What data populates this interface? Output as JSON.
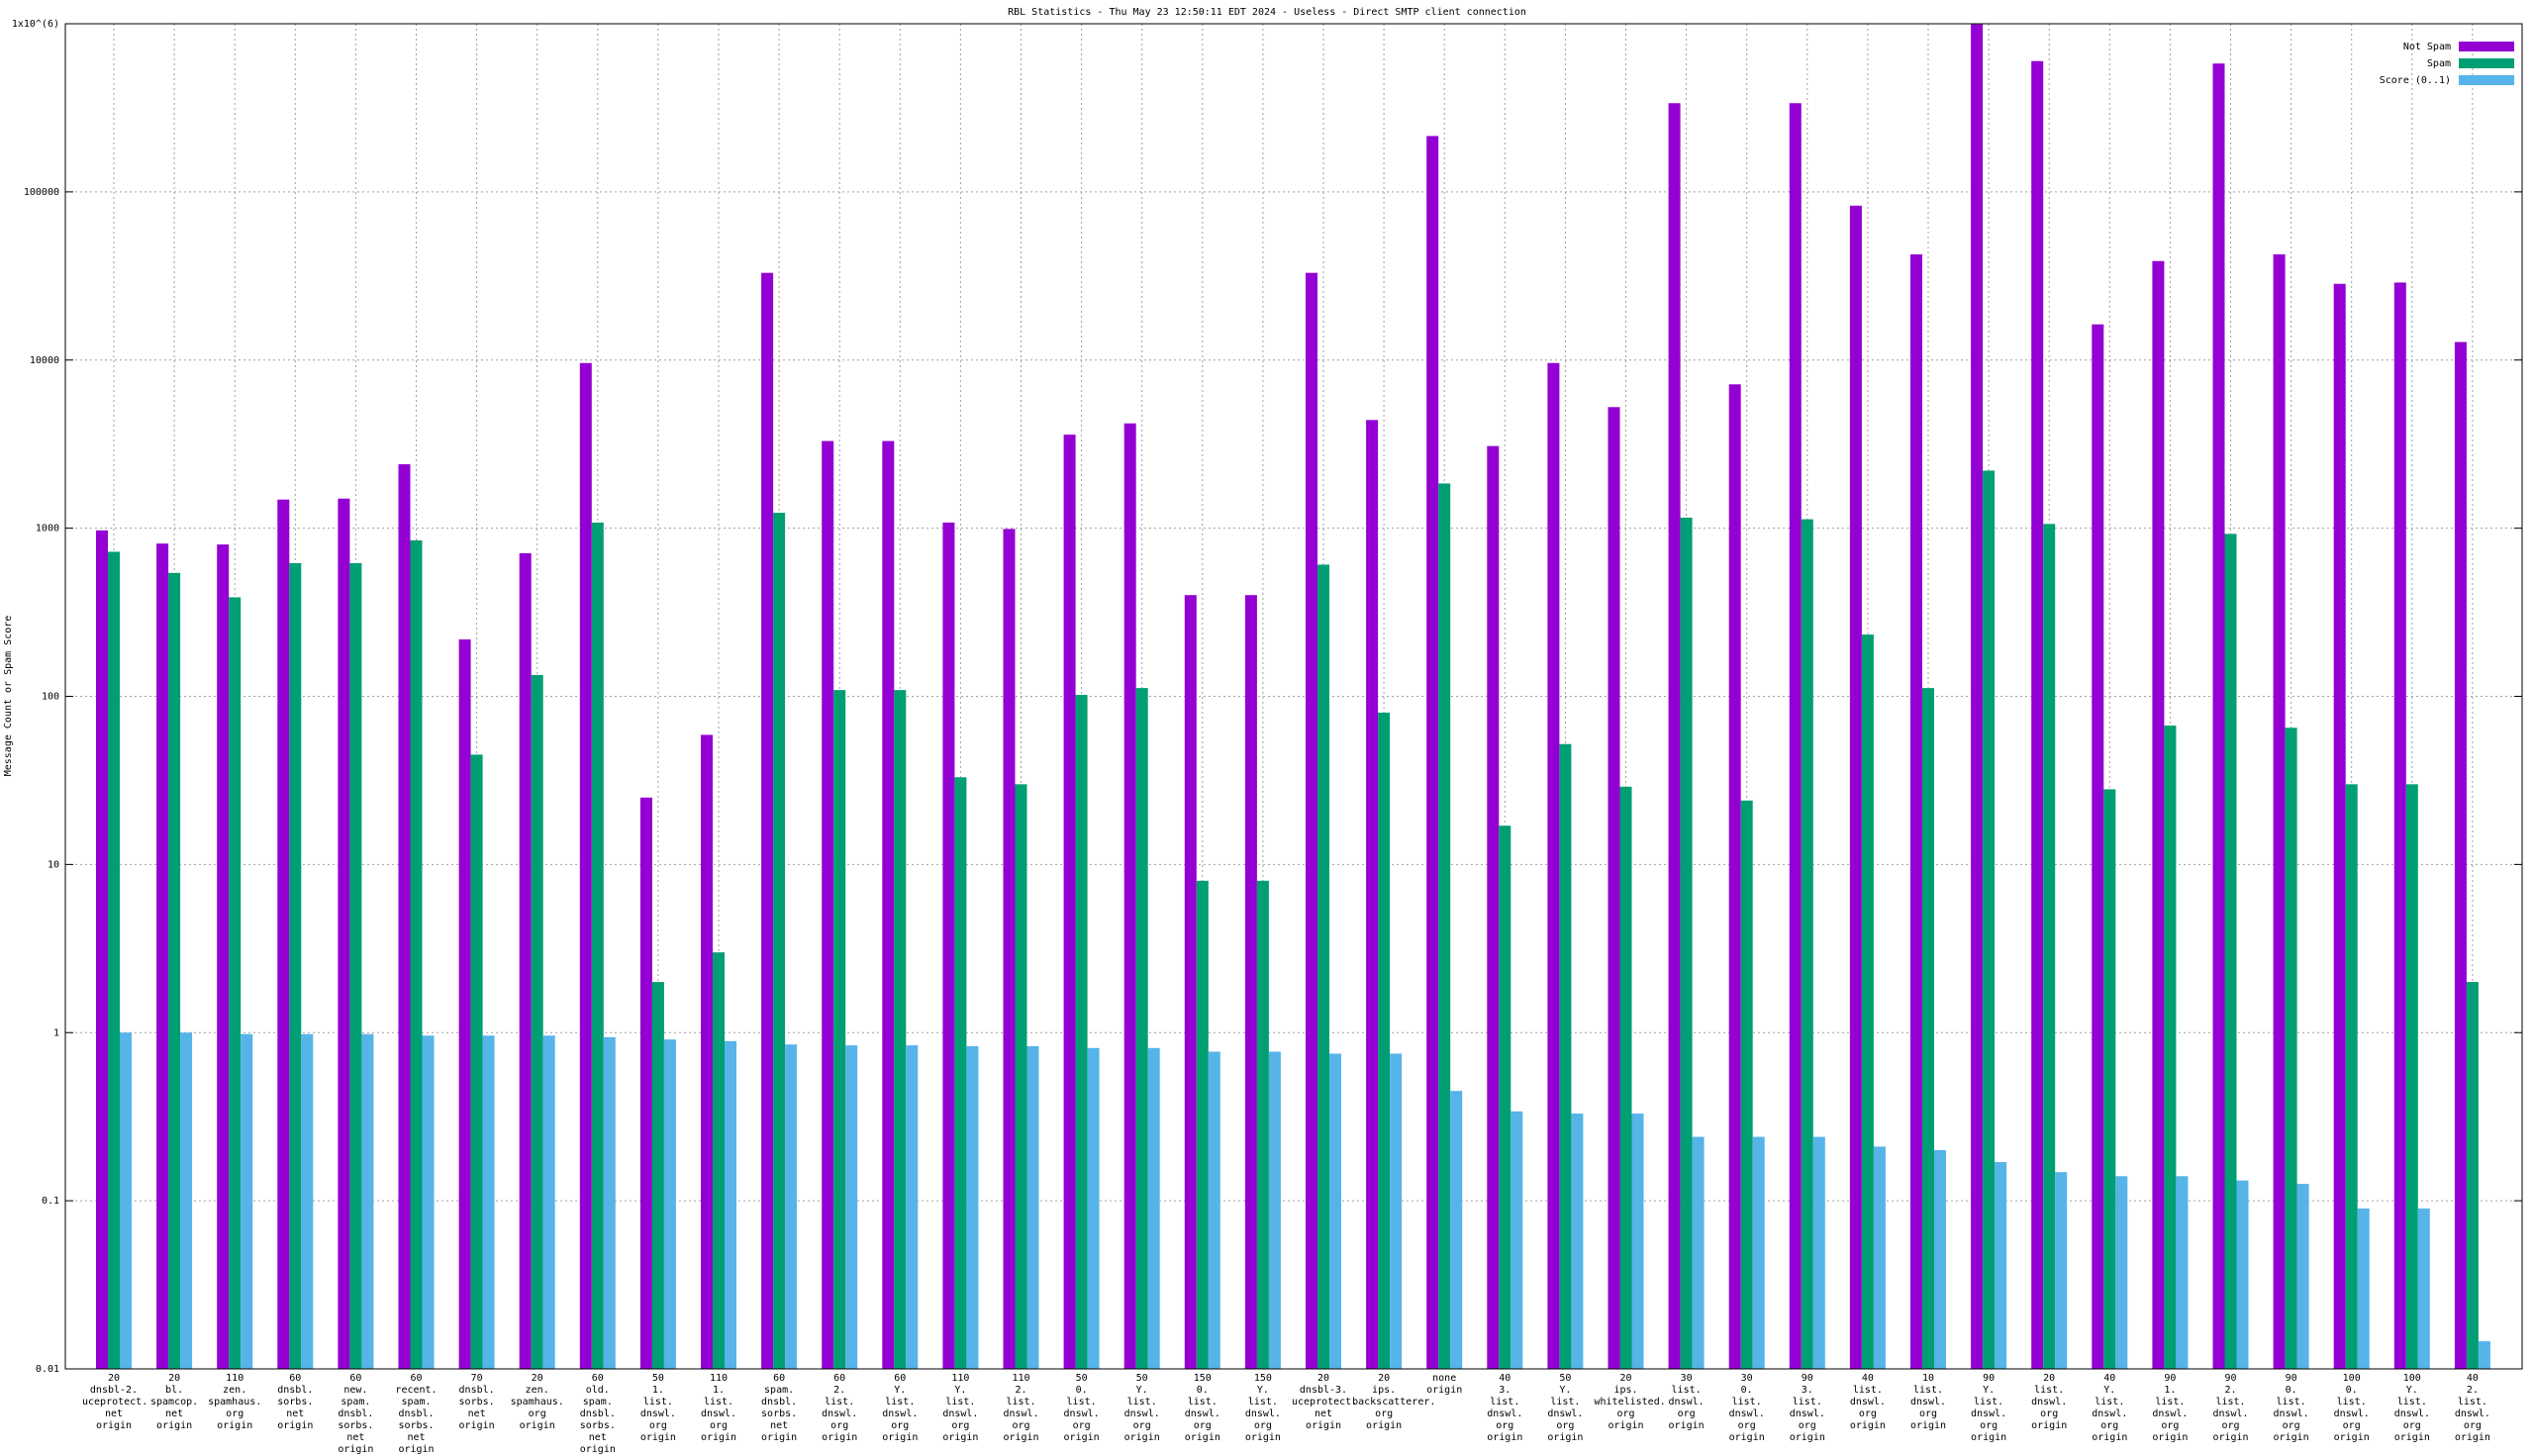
{
  "chart_data": {
    "type": "bar",
    "title": "RBL Statistics - Thu May 23 12:50:11 EDT 2024 - Useless - Direct SMTP client connection",
    "y_label": "Message Count or Spam Score",
    "log_y": true,
    "grid": true,
    "legend": "top-right",
    "ylim": [
      0.01,
      1000000
    ],
    "yticks": [
      0.01,
      0.1,
      1,
      10,
      100,
      1000,
      10000,
      100000,
      {
        "value": 1000000,
        "label": "1x10^(6)"
      }
    ],
    "categories": [
      "20\ndnsbl-2.\nuceprotect.\nnet\norigin",
      "20\nbl.\nspamcop.\nnet\norigin",
      "110\nzen.\nspamhaus.\norg\norigin",
      "60\ndnsbl.\nsorbs.\nnet\norigin",
      "60\nnew.\nspam.\ndnsbl.\nsorbs.\nnet\norigin",
      "60\nrecent.\nspam.\ndnsbl.\nsorbs.\nnet\norigin",
      "70\ndnsbl.\nsorbs.\nnet\norigin",
      "20\nzen.\nspamhaus.\norg\norigin",
      "60\nold.\nspam.\ndnsbl.\nsorbs.\nnet\norigin",
      "50\n1.\nlist.\ndnswl.\norg\norigin",
      "110\n1.\nlist.\ndnswl.\norg\norigin",
      "60\nspam.\ndnsbl.\nsorbs.\nnet\norigin",
      "60\n2.\nlist.\ndnswl.\norg\norigin",
      "60\nY.\nlist.\ndnswl.\norg\norigin",
      "110\nY.\nlist.\ndnswl.\norg\norigin",
      "110\n2.\nlist.\ndnswl.\norg\norigin",
      "50\n0.\nlist.\ndnswl.\norg\norigin",
      "50\nY.\nlist.\ndnswl.\norg\norigin",
      "150\n0.\nlist.\ndnswl.\norg\norigin",
      "150\nY.\nlist.\ndnswl.\norg\norigin",
      "20\ndnsbl-3.\nuceprotect.\nnet\norigin",
      "20\nips.\nbackscatterer.\norg\norigin",
      "none\norigin",
      "40\n3.\nlist.\ndnswl.\norg\norigin",
      "50\nY.\nlist.\ndnswl.\norg\norigin",
      "20\nips.\nwhitelisted.\norg\norigin",
      "30\nlist.\ndnswl.\norg\norigin",
      "30\n0.\nlist.\ndnswl.\norg\norigin",
      "90\n3.\nlist.\ndnswl.\norg\norigin",
      "40\nlist.\ndnswl.\norg\norigin",
      "10\nlist.\ndnswl.\norg\norigin",
      "90\nY.\nlist.\ndnswl.\norg\norigin",
      "20\nlist.\ndnswl.\norg\norigin",
      "40\nY.\nlist.\ndnswl.\norg\norigin",
      "90\n1.\nlist.\ndnswl.\norg\norigin",
      "90\n2.\nlist.\ndnswl.\norg\norigin",
      "90\n0.\nlist.\ndnswl.\norg\norigin",
      "100\n0.\nlist.\ndnswl.\norg\norigin",
      "100\nY.\nlist.\ndnswl.\norg\norigin",
      "40\n2.\nlist.\ndnswl.\norg\norigin"
    ],
    "series": [
      {
        "name": "Not Spam",
        "color": "#9400d3",
        "values": [
          970,
          810,
          800,
          1480,
          1500,
          2400,
          218,
          710,
          9600,
          25,
          59,
          33000,
          3300,
          3300,
          1080,
          990,
          3600,
          4200,
          400,
          400,
          33000,
          4400,
          215000,
          3080,
          9600,
          5250,
          337000,
          7170,
          337000,
          82800,
          42500,
          1000000,
          600000,
          16300,
          38800,
          580000,
          42500,
          28400,
          28900,
          12800
        ]
      },
      {
        "name": "Spam",
        "color": "#009e73",
        "values": [
          724,
          542,
          388,
          620,
          620,
          847,
          45,
          134,
          1080,
          2,
          3,
          1235,
          109,
          109,
          33,
          30,
          102,
          112,
          8,
          8,
          607,
          80,
          1845,
          17,
          52,
          29,
          1155,
          24,
          1130,
          233,
          112,
          2200,
          1060,
          28,
          67,
          925,
          65,
          30,
          30,
          2
        ]
      },
      {
        "name": "Score (0..1)",
        "color": "#56b4e9",
        "values": [
          1.0,
          1.0,
          0.98,
          0.98,
          0.98,
          0.96,
          0.96,
          0.96,
          0.94,
          0.91,
          0.89,
          0.85,
          0.84,
          0.84,
          0.83,
          0.83,
          0.81,
          0.81,
          0.77,
          0.77,
          0.75,
          0.75,
          0.45,
          0.34,
          0.33,
          0.33,
          0.24,
          0.24,
          0.24,
          0.21,
          0.2,
          0.17,
          0.148,
          0.14,
          0.14,
          0.132,
          0.126,
          0.09,
          0.09,
          0.0146
        ]
      }
    ]
  }
}
